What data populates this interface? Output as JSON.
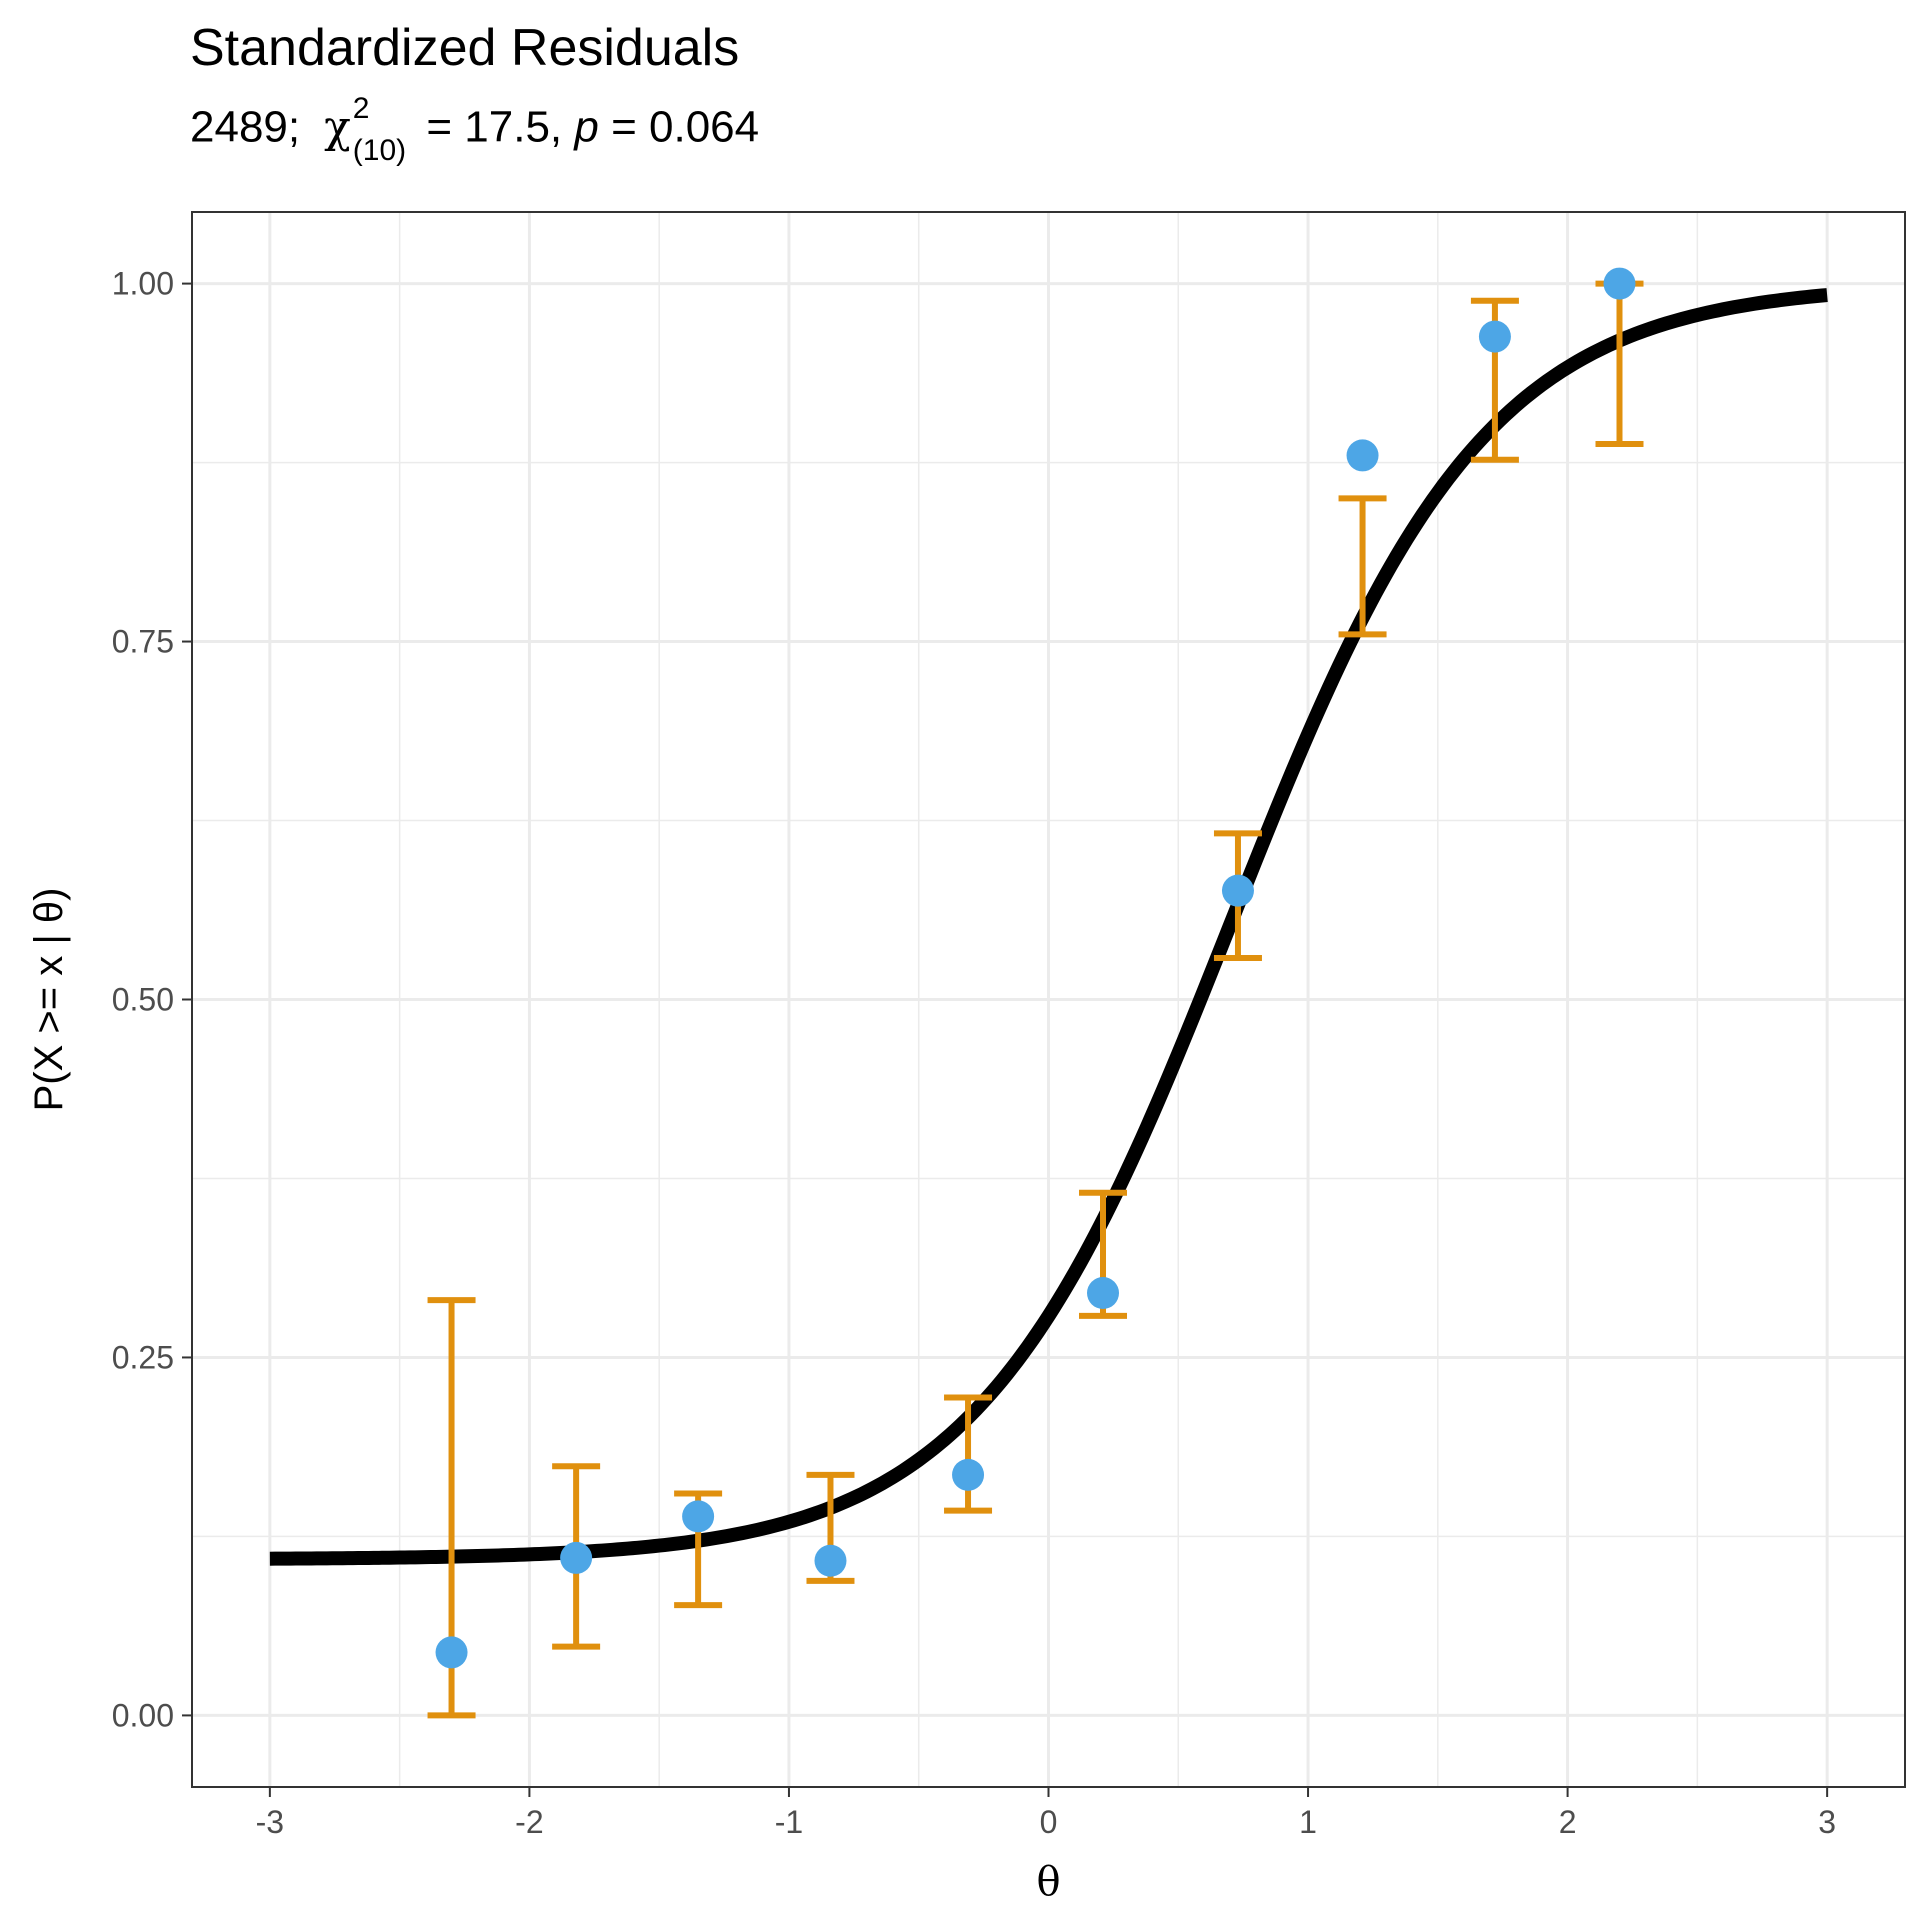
{
  "title": "Standardized Residuals",
  "subtitle": {
    "n": "2489;",
    "chi_symbol": "χ",
    "chi_sup": "2",
    "chi_sub": "(10)",
    "stat_text": " = 17.5, ",
    "p_label": "p",
    "p_text": " = 0.064"
  },
  "colors": {
    "curve": "#000000",
    "points": "#4da6e6",
    "errorbars": "#e0900e",
    "grid": "#ebebeb",
    "panel_border": "#333333"
  },
  "chart_data": {
    "type": "scatter",
    "xlabel": "θ",
    "ylabel": "P(X >= x | θ)",
    "xlim": [
      -3.3,
      3.3
    ],
    "ylim": [
      -0.05,
      1.05
    ],
    "x_ticks": [
      -3,
      -2,
      -1,
      0,
      1,
      2,
      3
    ],
    "x_tick_labels": [
      "-3",
      "-2",
      "-1",
      "0",
      "1",
      "2",
      "3"
    ],
    "y_ticks": [
      0,
      0.25,
      0.5,
      0.75,
      1
    ],
    "y_tick_labels": [
      "0.00",
      "0.25",
      "0.50",
      "0.75",
      "1.00"
    ],
    "grid": true,
    "curve": {
      "description": "3PL item characteristic curve",
      "guess": 0.109,
      "discrimination": 2.05,
      "difficulty": 0.705,
      "x_range": [
        -3,
        3
      ]
    },
    "points": [
      {
        "x": -2.3,
        "y": 0.044,
        "lower": 0.0,
        "upper": 0.29
      },
      {
        "x": -1.82,
        "y": 0.11,
        "lower": 0.048,
        "upper": 0.174
      },
      {
        "x": -1.35,
        "y": 0.139,
        "lower": 0.077,
        "upper": 0.155
      },
      {
        "x": -0.84,
        "y": 0.108,
        "lower": 0.094,
        "upper": 0.168
      },
      {
        "x": -0.31,
        "y": 0.168,
        "lower": 0.143,
        "upper": 0.222
      },
      {
        "x": 0.21,
        "y": 0.295,
        "lower": 0.279,
        "upper": 0.365
      },
      {
        "x": 0.73,
        "y": 0.576,
        "lower": 0.529,
        "upper": 0.616
      },
      {
        "x": 1.21,
        "y": 0.88,
        "lower": 0.755,
        "upper": 0.85
      },
      {
        "x": 1.72,
        "y": 0.963,
        "lower": 0.877,
        "upper": 0.988
      },
      {
        "x": 2.2,
        "y": 1.0,
        "lower": 0.888,
        "upper": 1.0
      }
    ]
  }
}
